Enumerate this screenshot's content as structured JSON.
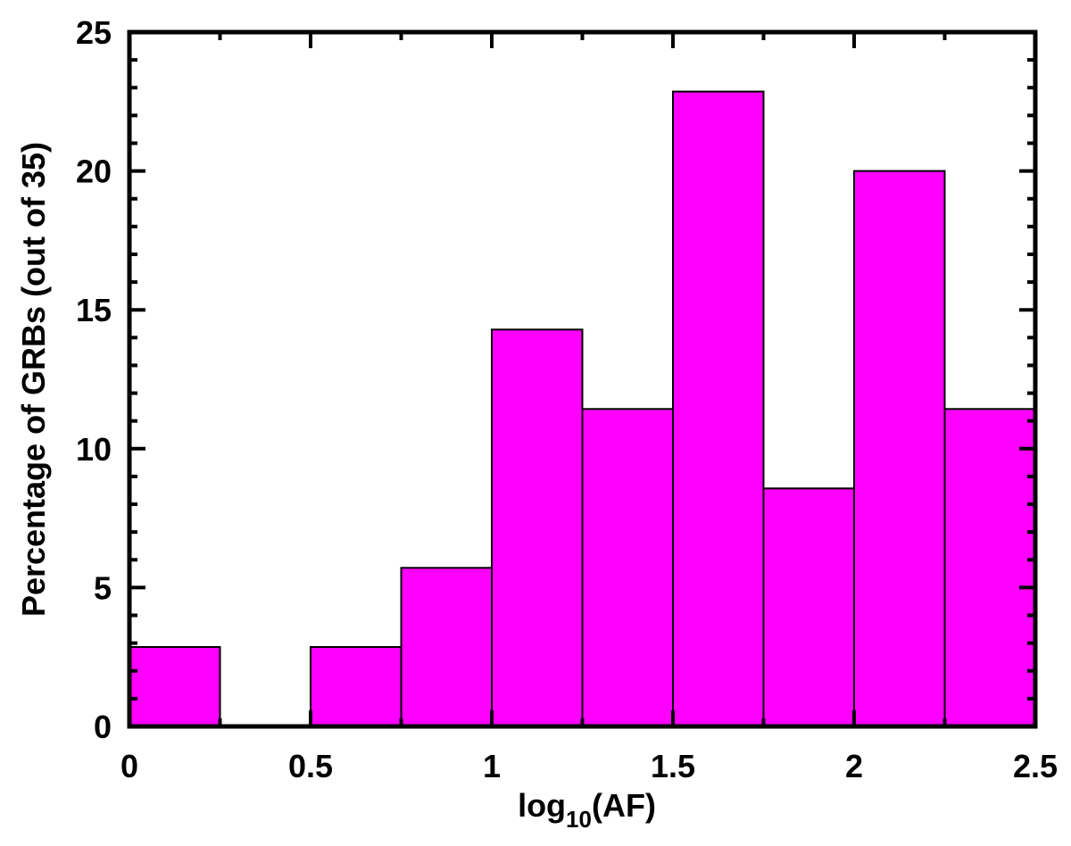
{
  "chart_data": {
    "type": "bar",
    "title": "",
    "xlabel": {
      "prefix": "log",
      "subscript": "10",
      "suffix": "(AF)"
    },
    "ylabel": "Percentage of GRBs (out of 35)",
    "xlim": [
      0,
      2.5
    ],
    "ylim": [
      0,
      25
    ],
    "bin_edges": [
      0,
      0.25,
      0.5,
      0.75,
      1.0,
      1.25,
      1.5,
      1.75,
      2.0,
      2.25,
      2.5
    ],
    "values": [
      2.86,
      0.0,
      2.86,
      5.71,
      14.29,
      11.43,
      22.86,
      8.57,
      20.0,
      11.43
    ],
    "xticks": [
      0,
      0.5,
      1,
      1.5,
      2,
      2.5
    ],
    "xtick_labels": [
      "0",
      "0.5",
      "1",
      "1.5",
      "2",
      "2.5"
    ],
    "yticks": [
      0,
      5,
      10,
      15,
      20,
      25
    ],
    "ytick_labels": [
      "0",
      "5",
      "10",
      "15",
      "20",
      "25"
    ],
    "x_minor_step": 0.25,
    "y_minor_step": 1,
    "grid": false,
    "legend": "none",
    "colors": {
      "bar_fill": "#ff00ff",
      "bar_edge": "#000000",
      "axes": "#000000"
    }
  }
}
